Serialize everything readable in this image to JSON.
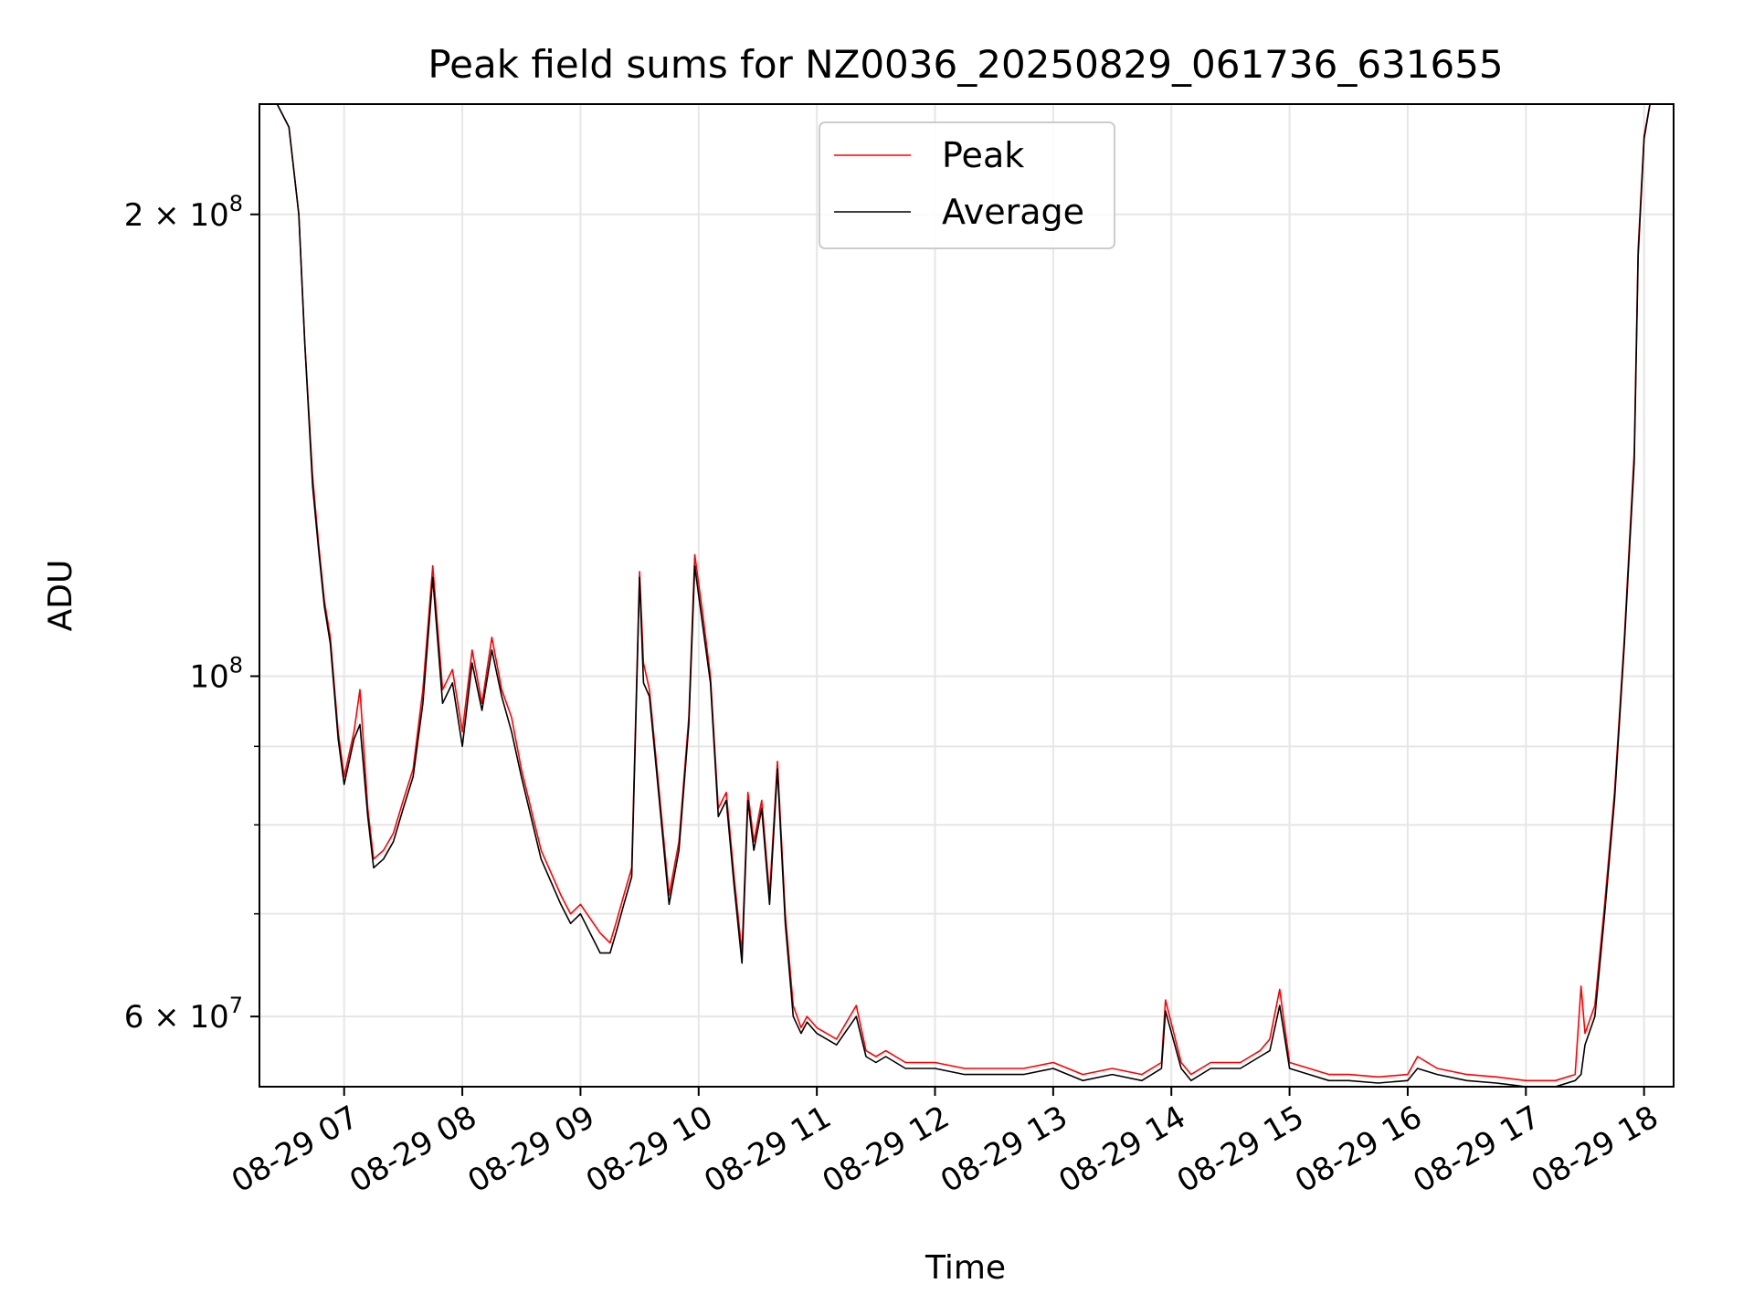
{
  "chart_data": {
    "type": "line",
    "title": "Peak field sums for NZ0036_20250829_061736_631655",
    "xlabel": "Time",
    "ylabel": "ADU",
    "y_scale": "log",
    "xlim": [
      "2025-08-29 06:17",
      "2025-08-29 18:15"
    ],
    "ylim": [
      54000000,
      236000000
    ],
    "x_ticks": [
      {
        "value": "2025-08-29 07:00",
        "label": "08-29 07"
      },
      {
        "value": "2025-08-29 08:00",
        "label": "08-29 08"
      },
      {
        "value": "2025-08-29 09:00",
        "label": "08-29 09"
      },
      {
        "value": "2025-08-29 10:00",
        "label": "08-29 10"
      },
      {
        "value": "2025-08-29 11:00",
        "label": "08-29 11"
      },
      {
        "value": "2025-08-29 12:00",
        "label": "08-29 12"
      },
      {
        "value": "2025-08-29 13:00",
        "label": "08-29 13"
      },
      {
        "value": "2025-08-29 14:00",
        "label": "08-29 14"
      },
      {
        "value": "2025-08-29 15:00",
        "label": "08-29 15"
      },
      {
        "value": "2025-08-29 16:00",
        "label": "08-29 16"
      },
      {
        "value": "2025-08-29 17:00",
        "label": "08-29 17"
      },
      {
        "value": "2025-08-29 18:00",
        "label": "08-29 18"
      }
    ],
    "y_major_ticks": [
      {
        "value": 60000000,
        "base": "6 × 10",
        "exp": "7"
      },
      {
        "value": 100000000,
        "base": "10",
        "exp": "8"
      },
      {
        "value": 200000000,
        "base": "2 × 10",
        "exp": "8"
      }
    ],
    "y_minor_ticks": [
      70000000,
      80000000,
      90000000
    ],
    "grid": true,
    "legend_position": "top-center",
    "series": [
      {
        "name": "Peak",
        "color": "#ff0000",
        "x": [
          "2025-08-29 06:17",
          "2025-08-29 06:26",
          "2025-08-29 06:32",
          "2025-08-29 06:37",
          "2025-08-29 06:40",
          "2025-08-29 06:44",
          "2025-08-29 06:47",
          "2025-08-29 06:50",
          "2025-08-29 06:53",
          "2025-08-29 06:57",
          "2025-08-29 07:00",
          "2025-08-29 07:05",
          "2025-08-29 07:08",
          "2025-08-29 07:12",
          "2025-08-29 07:15",
          "2025-08-29 07:20",
          "2025-08-29 07:25",
          "2025-08-29 07:30",
          "2025-08-29 07:35",
          "2025-08-29 07:40",
          "2025-08-29 07:45",
          "2025-08-29 07:50",
          "2025-08-29 07:55",
          "2025-08-29 08:00",
          "2025-08-29 08:05",
          "2025-08-29 08:10",
          "2025-08-29 08:15",
          "2025-08-29 08:20",
          "2025-08-29 08:25",
          "2025-08-29 08:30",
          "2025-08-29 08:40",
          "2025-08-29 08:50",
          "2025-08-29 08:55",
          "2025-08-29 09:00",
          "2025-08-29 09:10",
          "2025-08-29 09:15",
          "2025-08-29 09:18",
          "2025-08-29 09:22",
          "2025-08-29 09:26",
          "2025-08-29 09:30",
          "2025-08-29 09:32",
          "2025-08-29 09:35",
          "2025-08-29 09:40",
          "2025-08-29 09:45",
          "2025-08-29 09:50",
          "2025-08-29 09:55",
          "2025-08-29 09:58",
          "2025-08-29 10:02",
          "2025-08-29 10:06",
          "2025-08-29 10:10",
          "2025-08-29 10:14",
          "2025-08-29 10:18",
          "2025-08-29 10:22",
          "2025-08-29 10:25",
          "2025-08-29 10:28",
          "2025-08-29 10:32",
          "2025-08-29 10:36",
          "2025-08-29 10:40",
          "2025-08-29 10:44",
          "2025-08-29 10:48",
          "2025-08-29 10:52",
          "2025-08-29 10:55",
          "2025-08-29 11:00",
          "2025-08-29 11:10",
          "2025-08-29 11:20",
          "2025-08-29 11:25",
          "2025-08-29 11:30",
          "2025-08-29 11:35",
          "2025-08-29 11:45",
          "2025-08-29 12:00",
          "2025-08-29 12:15",
          "2025-08-29 12:30",
          "2025-08-29 12:45",
          "2025-08-29 13:00",
          "2025-08-29 13:15",
          "2025-08-29 13:30",
          "2025-08-29 13:45",
          "2025-08-29 13:55",
          "2025-08-29 13:57",
          "2025-08-29 14:05",
          "2025-08-29 14:10",
          "2025-08-29 14:20",
          "2025-08-29 14:35",
          "2025-08-29 14:45",
          "2025-08-29 14:50",
          "2025-08-29 14:55",
          "2025-08-29 15:00",
          "2025-08-29 15:10",
          "2025-08-29 15:20",
          "2025-08-29 15:30",
          "2025-08-29 15:45",
          "2025-08-29 16:00",
          "2025-08-29 16:05",
          "2025-08-29 16:15",
          "2025-08-29 16:30",
          "2025-08-29 16:45",
          "2025-08-29 17:00",
          "2025-08-29 17:15",
          "2025-08-29 17:25",
          "2025-08-29 17:28",
          "2025-08-29 17:30",
          "2025-08-29 17:35",
          "2025-08-29 17:40",
          "2025-08-29 17:45",
          "2025-08-29 17:50",
          "2025-08-29 17:55",
          "2025-08-29 17:57",
          "2025-08-29 18:00",
          "2025-08-29 18:03"
        ],
        "values": [
          236000000,
          236000000,
          228000000,
          200000000,
          165000000,
          135000000,
          122000000,
          112000000,
          106000000,
          92000000,
          86000000,
          92000000,
          98000000,
          82000000,
          76000000,
          77000000,
          79000000,
          83000000,
          87000000,
          98000000,
          118000000,
          98000000,
          101000000,
          92000000,
          104000000,
          96000000,
          106000000,
          98000000,
          94000000,
          87000000,
          77000000,
          72000000,
          70000000,
          71000000,
          68000000,
          67000000,
          69000000,
          72000000,
          75000000,
          117000000,
          102000000,
          98000000,
          84000000,
          72000000,
          78000000,
          94000000,
          120000000,
          110000000,
          100000000,
          82000000,
          84000000,
          74000000,
          66000000,
          84000000,
          78000000,
          83000000,
          72000000,
          88000000,
          70000000,
          61000000,
          59000000,
          60000000,
          59000000,
          58000000,
          61000000,
          57000000,
          56500000,
          57000000,
          56000000,
          56000000,
          55500000,
          55500000,
          55500000,
          56000000,
          55000000,
          55500000,
          55000000,
          56000000,
          61500000,
          56000000,
          55000000,
          56000000,
          56000000,
          57000000,
          58000000,
          62500000,
          56000000,
          55500000,
          55000000,
          55000000,
          54800000,
          55000000,
          56500000,
          55500000,
          55000000,
          54800000,
          54500000,
          54500000,
          55000000,
          62800000,
          58500000,
          61000000,
          71000000,
          84000000,
          106000000,
          140000000,
          190000000,
          225000000,
          236000000
        ]
      },
      {
        "name": "Average",
        "color": "#000000",
        "x": [
          "2025-08-29 06:17",
          "2025-08-29 06:26",
          "2025-08-29 06:32",
          "2025-08-29 06:37",
          "2025-08-29 06:40",
          "2025-08-29 06:44",
          "2025-08-29 06:47",
          "2025-08-29 06:50",
          "2025-08-29 06:53",
          "2025-08-29 06:57",
          "2025-08-29 07:00",
          "2025-08-29 07:05",
          "2025-08-29 07:08",
          "2025-08-29 07:12",
          "2025-08-29 07:15",
          "2025-08-29 07:20",
          "2025-08-29 07:25",
          "2025-08-29 07:30",
          "2025-08-29 07:35",
          "2025-08-29 07:40",
          "2025-08-29 07:45",
          "2025-08-29 07:50",
          "2025-08-29 07:55",
          "2025-08-29 08:00",
          "2025-08-29 08:05",
          "2025-08-29 08:10",
          "2025-08-29 08:15",
          "2025-08-29 08:20",
          "2025-08-29 08:25",
          "2025-08-29 08:30",
          "2025-08-29 08:40",
          "2025-08-29 08:50",
          "2025-08-29 08:55",
          "2025-08-29 09:00",
          "2025-08-29 09:10",
          "2025-08-29 09:15",
          "2025-08-29 09:18",
          "2025-08-29 09:22",
          "2025-08-29 09:26",
          "2025-08-29 09:30",
          "2025-08-29 09:32",
          "2025-08-29 09:35",
          "2025-08-29 09:40",
          "2025-08-29 09:45",
          "2025-08-29 09:50",
          "2025-08-29 09:55",
          "2025-08-29 09:58",
          "2025-08-29 10:02",
          "2025-08-29 10:06",
          "2025-08-29 10:10",
          "2025-08-29 10:14",
          "2025-08-29 10:18",
          "2025-08-29 10:22",
          "2025-08-29 10:25",
          "2025-08-29 10:28",
          "2025-08-29 10:32",
          "2025-08-29 10:36",
          "2025-08-29 10:40",
          "2025-08-29 10:44",
          "2025-08-29 10:48",
          "2025-08-29 10:52",
          "2025-08-29 10:55",
          "2025-08-29 11:00",
          "2025-08-29 11:10",
          "2025-08-29 11:20",
          "2025-08-29 11:25",
          "2025-08-29 11:30",
          "2025-08-29 11:35",
          "2025-08-29 11:45",
          "2025-08-29 12:00",
          "2025-08-29 12:15",
          "2025-08-29 12:30",
          "2025-08-29 12:45",
          "2025-08-29 13:00",
          "2025-08-29 13:15",
          "2025-08-29 13:30",
          "2025-08-29 13:45",
          "2025-08-29 13:55",
          "2025-08-29 13:57",
          "2025-08-29 14:05",
          "2025-08-29 14:10",
          "2025-08-29 14:20",
          "2025-08-29 14:35",
          "2025-08-29 14:45",
          "2025-08-29 14:50",
          "2025-08-29 14:55",
          "2025-08-29 15:00",
          "2025-08-29 15:10",
          "2025-08-29 15:20",
          "2025-08-29 15:30",
          "2025-08-29 15:45",
          "2025-08-29 16:00",
          "2025-08-29 16:05",
          "2025-08-29 16:15",
          "2025-08-29 16:30",
          "2025-08-29 16:45",
          "2025-08-29 17:00",
          "2025-08-29 17:15",
          "2025-08-29 17:25",
          "2025-08-29 17:28",
          "2025-08-29 17:30",
          "2025-08-29 17:35",
          "2025-08-29 17:40",
          "2025-08-29 17:45",
          "2025-08-29 17:50",
          "2025-08-29 17:55",
          "2025-08-29 17:57",
          "2025-08-29 18:00",
          "2025-08-29 18:03"
        ],
        "values": [
          236000000,
          236000000,
          228000000,
          200000000,
          165000000,
          133000000,
          121000000,
          111000000,
          105000000,
          91000000,
          85000000,
          91000000,
          93000000,
          81000000,
          75000000,
          76000000,
          78000000,
          82000000,
          86000000,
          96000000,
          116000000,
          96000000,
          99000000,
          90000000,
          102000000,
          95000000,
          104000000,
          97000000,
          92000000,
          86000000,
          76000000,
          71000000,
          69000000,
          70000000,
          66000000,
          66000000,
          68000000,
          71000000,
          74000000,
          116000000,
          99000000,
          97000000,
          83000000,
          71000000,
          77000000,
          93000000,
          118000000,
          108000000,
          99000000,
          81000000,
          83000000,
          73000000,
          65000000,
          83000000,
          77000000,
          82000000,
          71000000,
          87000000,
          69000000,
          60000000,
          58500000,
          59500000,
          58500000,
          57500000,
          60000000,
          56500000,
          56000000,
          56500000,
          55500000,
          55500000,
          55000000,
          55000000,
          55000000,
          55500000,
          54500000,
          55000000,
          54500000,
          55500000,
          60500000,
          55500000,
          54500000,
          55500000,
          55500000,
          56500000,
          57000000,
          61000000,
          55500000,
          55000000,
          54500000,
          54500000,
          54300000,
          54500000,
          55500000,
          55000000,
          54500000,
          54300000,
          54000000,
          54000000,
          54500000,
          55000000,
          57500000,
          60000000,
          70000000,
          83000000,
          105000000,
          138000000,
          188000000,
          224000000,
          236000000
        ]
      }
    ]
  }
}
